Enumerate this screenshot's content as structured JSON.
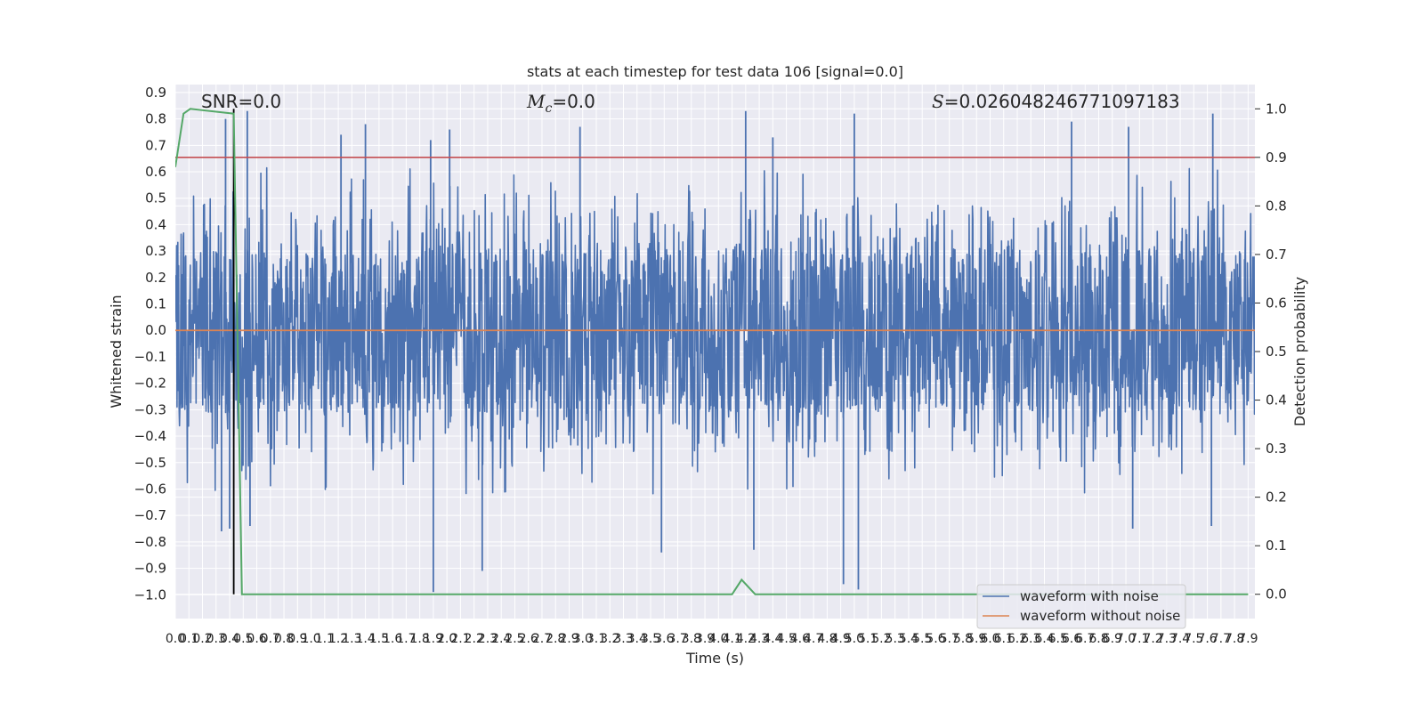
{
  "chart_data": {
    "type": "line",
    "title": "stats at each timestep for test data 106 [signal=0.0]",
    "xlabel": "Time (s)",
    "ylabel": "Whitened strain",
    "y2label": "Detection probability",
    "xlim": [
      0.0,
      7.95
    ],
    "ylim": [
      -1.09,
      0.93
    ],
    "y2lim": [
      -0.05,
      1.05
    ],
    "grid": true,
    "legend_position": "bottom-right",
    "x_tick_labels": [
      "0.0",
      "0.1",
      "0.2",
      "0.3",
      "0.4",
      "0.5",
      "0.6",
      "0.7",
      "0.8",
      "0.9",
      "1.0",
      "1.1",
      "1.2",
      "1.3",
      "1.4",
      "1.5",
      "1.6",
      "1.7",
      "1.8",
      "1.9",
      "2.0",
      "2.1",
      "2.2",
      "2.3",
      "2.4",
      "2.5",
      "2.6",
      "2.7",
      "2.8",
      "2.9",
      "3.0",
      "3.1",
      "3.2",
      "3.3",
      "3.4",
      "3.5",
      "3.6",
      "3.7",
      "3.8",
      "3.9",
      "4.0",
      "4.1",
      "4.2",
      "4.3",
      "4.4",
      "4.5",
      "4.6",
      "4.7",
      "4.8",
      "4.9",
      "5.0",
      "5.1",
      "5.2",
      "5.3",
      "5.4",
      "5.5",
      "5.6",
      "5.7",
      "5.8",
      "5.9",
      "6.0",
      "6.1",
      "6.2",
      "6.3",
      "6.4",
      "6.5",
      "6.6",
      "6.7",
      "6.8",
      "6.9",
      "7.0",
      "7.1",
      "7.2",
      "7.3",
      "7.4",
      "7.5",
      "7.6",
      "7.7",
      "7.8",
      "7.9"
    ],
    "y_ticks": [
      -1.0,
      -0.9,
      -0.8,
      -0.7,
      -0.6,
      -0.5,
      -0.4,
      -0.3,
      -0.2,
      -0.1,
      0.0,
      0.1,
      0.2,
      0.3,
      0.4,
      0.5,
      0.6,
      0.7,
      0.8,
      0.9
    ],
    "y_tick_labels": [
      "−1.0",
      "−0.9",
      "−0.8",
      "−0.7",
      "−0.6",
      "−0.5",
      "−0.4",
      "−0.3",
      "−0.2",
      "−0.1",
      "0.0",
      "0.1",
      "0.2",
      "0.3",
      "0.4",
      "0.5",
      "0.6",
      "0.7",
      "0.8",
      "0.9"
    ],
    "y2_ticks": [
      0.0,
      0.1,
      0.2,
      0.3,
      0.4,
      0.5,
      0.6,
      0.7,
      0.8,
      0.9,
      1.0
    ],
    "y2_tick_labels": [
      "0.0",
      "0.1",
      "0.2",
      "0.3",
      "0.4",
      "0.5",
      "0.6",
      "0.7",
      "0.8",
      "0.9",
      "1.0"
    ],
    "annotations": {
      "snr": "SNR=0.0",
      "mc_symbol": "M",
      "mc_sub": "c",
      "mc_value": "=0.0",
      "s_symbol": "S",
      "s_value": "=0.026048246771097183"
    },
    "series": [
      {
        "name": "waveform with noise",
        "color": "#4c72b0",
        "axis": "left",
        "description": "dense noise, approximately within ±0.5 with spikes",
        "spikes": [
          {
            "x": 0.34,
            "y": -0.76
          },
          {
            "x": 0.37,
            "y": 0.8
          },
          {
            "x": 0.4,
            "y": -0.75
          },
          {
            "x": 0.53,
            "y": 0.83
          },
          {
            "x": 0.55,
            "y": -0.74
          },
          {
            "x": 1.22,
            "y": 0.74
          },
          {
            "x": 1.4,
            "y": 0.78
          },
          {
            "x": 1.88,
            "y": 0.72
          },
          {
            "x": 1.9,
            "y": -0.99
          },
          {
            "x": 2.02,
            "y": 0.76
          },
          {
            "x": 2.26,
            "y": -0.91
          },
          {
            "x": 2.98,
            "y": 0.77
          },
          {
            "x": 3.58,
            "y": -0.84
          },
          {
            "x": 4.2,
            "y": 0.83
          },
          {
            "x": 4.26,
            "y": -0.83
          },
          {
            "x": 4.4,
            "y": 0.73
          },
          {
            "x": 4.92,
            "y": -0.96
          },
          {
            "x": 5.0,
            "y": 0.82
          },
          {
            "x": 5.03,
            "y": -0.98
          },
          {
            "x": 6.6,
            "y": 0.79
          },
          {
            "x": 7.02,
            "y": 0.77
          },
          {
            "x": 7.05,
            "y": -0.75
          },
          {
            "x": 7.64,
            "y": 0.82
          },
          {
            "x": 7.63,
            "y": -0.74
          }
        ]
      },
      {
        "name": "waveform without noise",
        "color": "#dd8452",
        "axis": "left",
        "x": [
          0.0,
          7.95
        ],
        "y": [
          0.0,
          0.0
        ]
      },
      {
        "color": "#55a868",
        "axis": "right",
        "x": [
          0.0,
          0.06,
          0.11,
          0.43,
          0.49,
          0.56,
          4.1,
          4.17,
          4.27,
          7.9
        ],
        "y": [
          0.88,
          0.99,
          1.0,
          0.99,
          0.0,
          0.0,
          0.0,
          0.03,
          0.0,
          0.0
        ]
      }
    ],
    "reference_lines": [
      {
        "orientation": "horizontal",
        "axis": "right",
        "value": 0.9,
        "color": "#c44e52"
      },
      {
        "orientation": "vertical",
        "value": 0.43,
        "color": "#000000"
      }
    ]
  }
}
